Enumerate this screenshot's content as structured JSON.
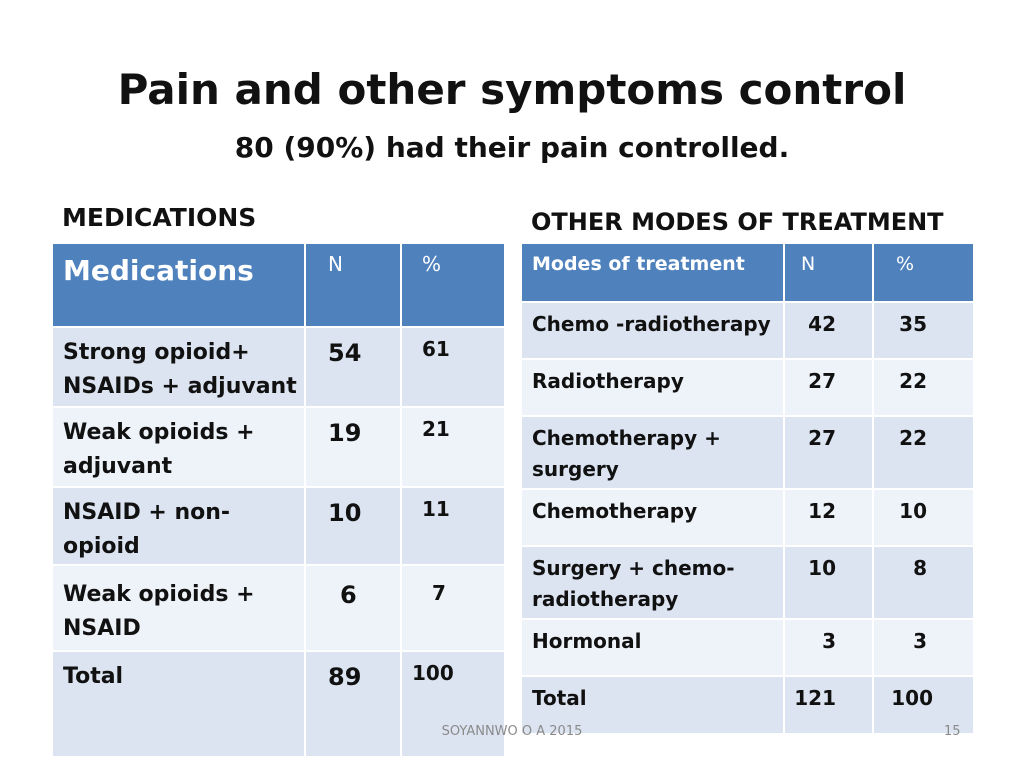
{
  "slide": {
    "title": "Pain and other symptoms control",
    "subtitle": "80 (90%) had their pain controlled.",
    "footer_author": "SOYANNWO O A 2015",
    "page_number": "15"
  },
  "medications": {
    "heading": "MEDICATIONS",
    "columns": [
      "Medications",
      "N",
      "%"
    ],
    "rows": [
      {
        "label": "Strong opioid+ NSAIDs + adjuvant",
        "n": "54",
        "pct": "61"
      },
      {
        "label": "Weak opioids + adjuvant",
        "n": "19",
        "pct": "21"
      },
      {
        "label": "NSAID + non-opioid",
        "n": "10",
        "pct": "11"
      },
      {
        "label": "Weak opioids + NSAID",
        "n": "6",
        "pct": "7"
      },
      {
        "label": "Total",
        "n": "89",
        "pct": "100"
      }
    ]
  },
  "other_modes": {
    "heading": "OTHER MODES OF TREATMENT",
    "columns": [
      "Modes of treatment",
      "N",
      "%"
    ],
    "rows": [
      {
        "label": "Chemo -radiotherapy",
        "n": "42",
        "pct": "35"
      },
      {
        "label": "Radiotherapy",
        "n": "27",
        "pct": "22"
      },
      {
        "label": "Chemotherapy + surgery",
        "n": "27",
        "pct": "22"
      },
      {
        "label": "Chemotherapy",
        "n": "12",
        "pct": "10"
      },
      {
        "label": "Surgery + chemo-radiotherapy",
        "n": "10",
        "pct": "8"
      },
      {
        "label": "Hormonal",
        "n": "3",
        "pct": "3"
      },
      {
        "label": "Total",
        "n": "121",
        "pct": "100"
      }
    ]
  },
  "colors": {
    "header_blue": "#4f81bd",
    "row_dark": "#dbe4f0",
    "row_light": "#eef2f9"
  }
}
